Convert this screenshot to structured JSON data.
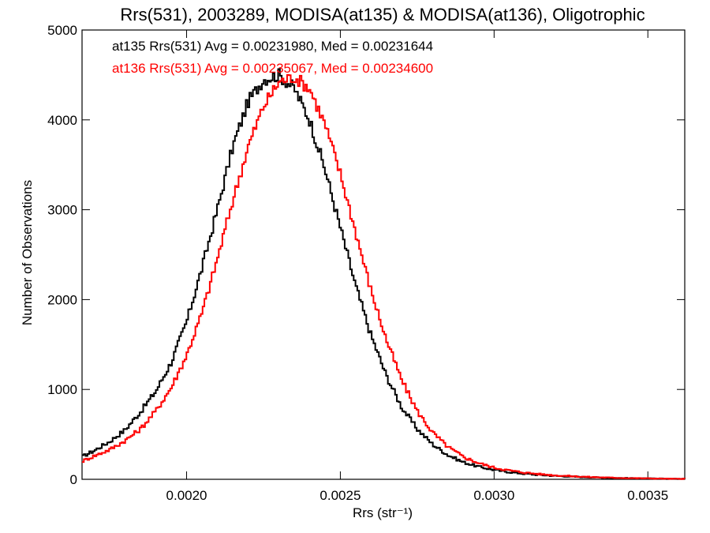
{
  "chart_data": {
    "type": "line",
    "title": "Rrs(531), 2003289, MODISA(at135) & MODISA(at136), Oligotrophic",
    "xlabel": "Rrs (str⁻¹)",
    "ylabel": "Number of Observations",
    "xlim": [
      0.00166,
      0.00362
    ],
    "ylim": [
      0,
      5000
    ],
    "xticks": [
      0.002,
      0.0025,
      0.003,
      0.0035
    ],
    "xtick_labels": [
      "0.0020",
      "0.0025",
      "0.0030",
      "0.0035"
    ],
    "yticks": [
      0,
      1000,
      2000,
      3000,
      4000,
      5000
    ],
    "ytick_labels": [
      "0",
      "1000",
      "2000",
      "3000",
      "4000",
      "5000"
    ],
    "grid": false,
    "legend_position": "top-left",
    "legend": [
      "at135 Rrs(531) Avg = 0.00231980, Med = 0.00231644",
      "at136 Rrs(531) Avg = 0.00235067, Med = 0.00234600"
    ],
    "series": [
      {
        "color": "#000000",
        "x": [
          0.00166,
          0.0017,
          0.00175,
          0.0018,
          0.00185,
          0.0019,
          0.00195,
          0.002,
          0.00205,
          0.0021,
          0.00215,
          0.0022,
          0.00225,
          0.0023,
          0.00235,
          0.0024,
          0.00245,
          0.0025,
          0.00255,
          0.0026,
          0.00265,
          0.0027,
          0.00275,
          0.0028,
          0.00285,
          0.0029,
          0.00295,
          0.003,
          0.00305,
          0.0031,
          0.00315,
          0.0032,
          0.00325,
          0.0033,
          0.00335,
          0.0034,
          0.00345,
          0.0035,
          0.00355,
          0.0036
        ],
        "values": [
          250,
          320,
          420,
          550,
          750,
          980,
          1300,
          1750,
          2350,
          3000,
          3700,
          4200,
          4450,
          4500,
          4350,
          4000,
          3450,
          2800,
          2150,
          1600,
          1150,
          800,
          560,
          390,
          270,
          190,
          140,
          105,
          80,
          62,
          48,
          38,
          30,
          24,
          19,
          15,
          12,
          9,
          7,
          5
        ]
      },
      {
        "color": "#ff0000",
        "x": [
          0.00166,
          0.0017,
          0.00175,
          0.0018,
          0.00185,
          0.0019,
          0.00195,
          0.002,
          0.00205,
          0.0021,
          0.00215,
          0.0022,
          0.00225,
          0.0023,
          0.00235,
          0.0024,
          0.00245,
          0.0025,
          0.00255,
          0.0026,
          0.00265,
          0.0027,
          0.00275,
          0.0028,
          0.00285,
          0.0029,
          0.00295,
          0.003,
          0.00305,
          0.0031,
          0.00315,
          0.0032,
          0.00325,
          0.0033,
          0.00335,
          0.0034,
          0.00345,
          0.0035,
          0.00355,
          0.0036
        ],
        "values": [
          200,
          260,
          330,
          430,
          560,
          760,
          1020,
          1380,
          1850,
          2450,
          3100,
          3700,
          4150,
          4420,
          4480,
          4350,
          3950,
          3400,
          2750,
          2100,
          1550,
          1100,
          760,
          520,
          360,
          250,
          180,
          130,
          98,
          74,
          57,
          44,
          35,
          27,
          21,
          16,
          13,
          10,
          7,
          5
        ]
      }
    ]
  }
}
